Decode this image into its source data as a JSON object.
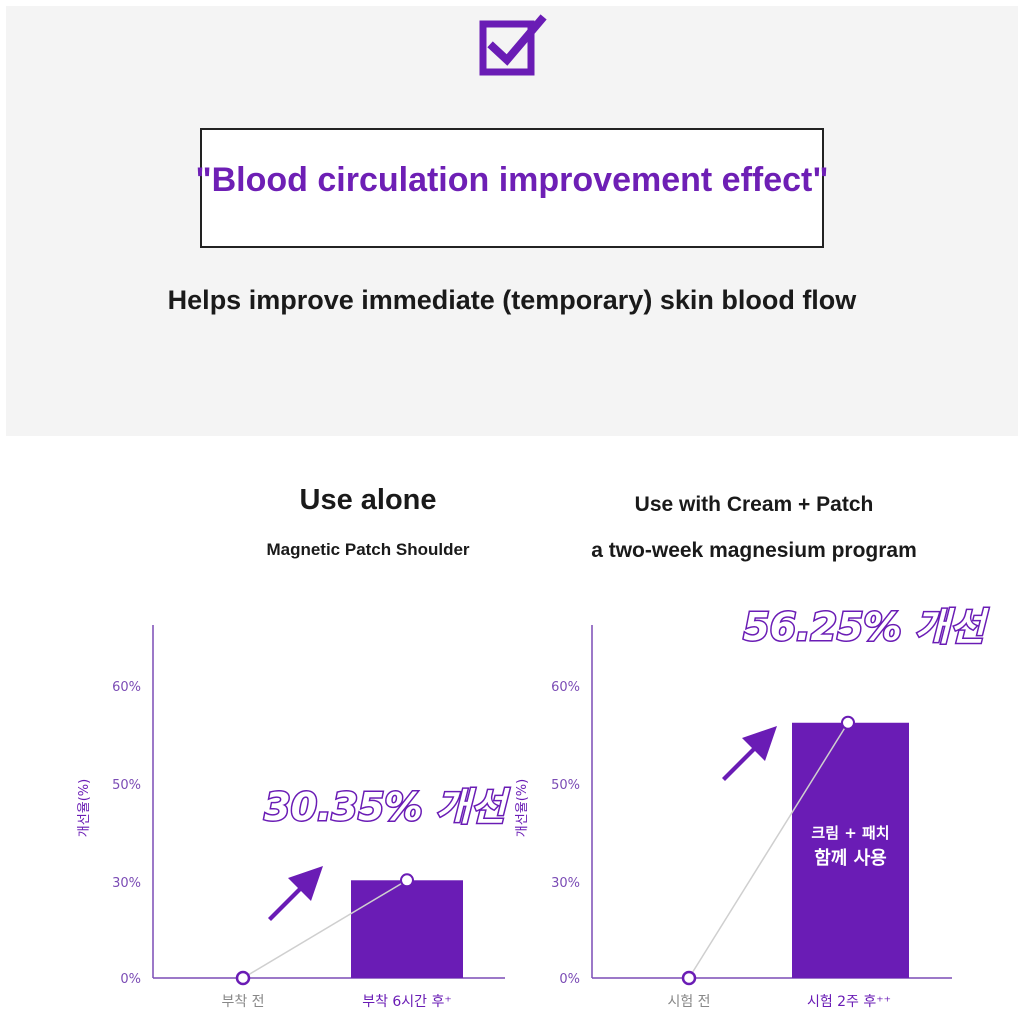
{
  "header": {
    "title": "\"Blood circulation improvement effect\"",
    "subtitle": "Helps improve immediate (temporary) skin blood flow"
  },
  "left_panel": {
    "heading": "Use alone",
    "subheading": "Magnetic Patch Shoulder"
  },
  "right_panel": {
    "heading": "Use with Cream + Patch",
    "subheading": "a two-week magnesium program"
  },
  "colors": {
    "accent": "#6a1cb5",
    "axis": "#7b4cb5",
    "light": "#cccccc"
  },
  "chart_data": [
    {
      "type": "bar",
      "ylabel": "개선율(%)",
      "yticks": [
        "0%",
        "30%",
        "50%",
        "60%"
      ],
      "categories": [
        "부착 전",
        "부착 6시간 후⁺"
      ],
      "values": [
        0,
        30.35
      ],
      "annotation": "30.35% 개선"
    },
    {
      "type": "bar",
      "ylabel": "개선율(%)",
      "yticks": [
        "0%",
        "30%",
        "50%",
        "60%"
      ],
      "categories": [
        "시험 전",
        "시험 2주 후⁺⁺"
      ],
      "values": [
        0,
        56.25
      ],
      "annotation": "56.25% 개선",
      "bar_label_line1": "크림 + 패치",
      "bar_label_line2": "함께 사용"
    }
  ]
}
